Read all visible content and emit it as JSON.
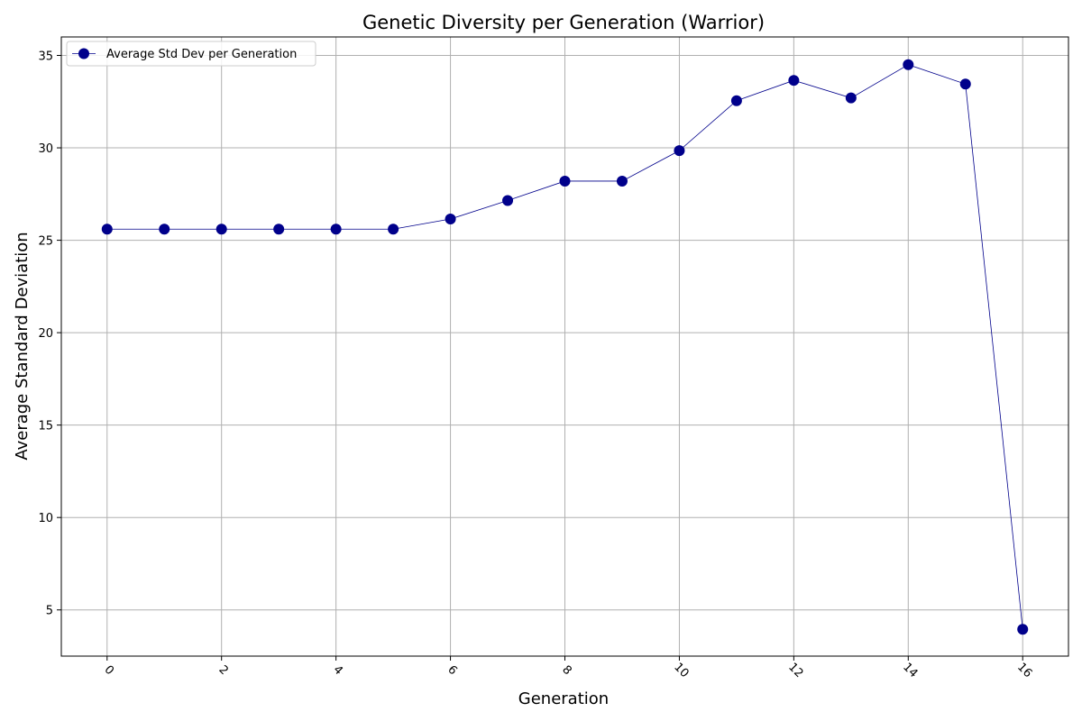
{
  "chart_data": {
    "type": "line",
    "title": "Genetic Diversity per Generation (Warrior)",
    "xlabel": "Generation",
    "ylabel": "Average Standard Deviation",
    "x": [
      0,
      1,
      2,
      3,
      4,
      5,
      6,
      7,
      8,
      9,
      10,
      11,
      12,
      13,
      14,
      15,
      16
    ],
    "series": [
      {
        "name": "Average Std Dev per Generation",
        "values": [
          25.6,
          25.6,
          25.6,
          25.6,
          25.6,
          25.6,
          26.15,
          27.15,
          28.2,
          28.2,
          29.85,
          32.55,
          33.65,
          32.7,
          34.5,
          33.45,
          3.95
        ],
        "color": "#00008b"
      }
    ],
    "xlim": [
      -0.8,
      16.8
    ],
    "ylim": [
      2.5,
      36
    ],
    "xticks": [
      0,
      2,
      4,
      6,
      8,
      10,
      12,
      14,
      16
    ],
    "yticks": [
      5,
      10,
      15,
      20,
      25,
      30,
      35
    ],
    "xtick_rotation": 45,
    "grid": true,
    "legend": "upper-left"
  }
}
